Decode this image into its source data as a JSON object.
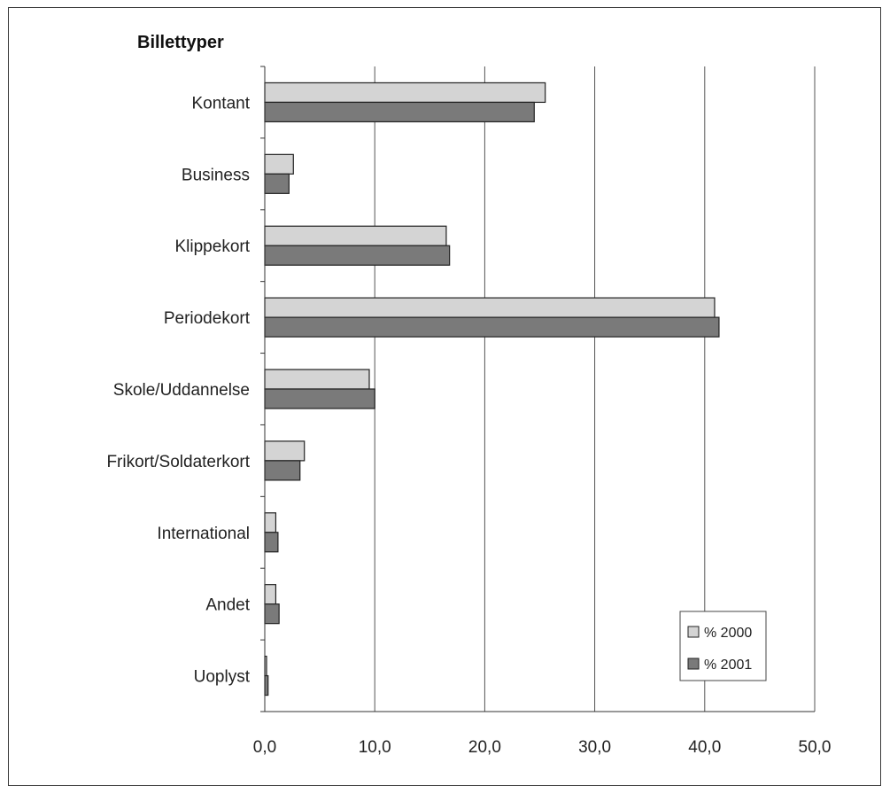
{
  "chart_data": {
    "type": "bar",
    "orientation": "horizontal",
    "title": "Billettyper",
    "xlabel": "",
    "ylabel": "",
    "categories": [
      "Kontant",
      "Business",
      "Klippekort",
      "Periodekort",
      "Skole/Uddannelse",
      "Frikort/Soldaterkort",
      "International",
      "Andet",
      "Uoplyst"
    ],
    "series": [
      {
        "name": "% 2000",
        "color": "#d4d4d4",
        "values": [
          25.5,
          2.6,
          16.5,
          40.9,
          9.5,
          3.6,
          1.0,
          1.0,
          0.1
        ]
      },
      {
        "name": "% 2001",
        "color": "#7a7a7a",
        "values": [
          24.5,
          2.2,
          16.8,
          41.3,
          10.0,
          3.2,
          1.2,
          1.3,
          0.3
        ]
      }
    ],
    "xlim": [
      0,
      50
    ],
    "xticks": [
      "0,0",
      "10,0",
      "20,0",
      "30,0",
      "40,0",
      "50,0"
    ],
    "grid": true,
    "legend_position": "bottom-right"
  }
}
